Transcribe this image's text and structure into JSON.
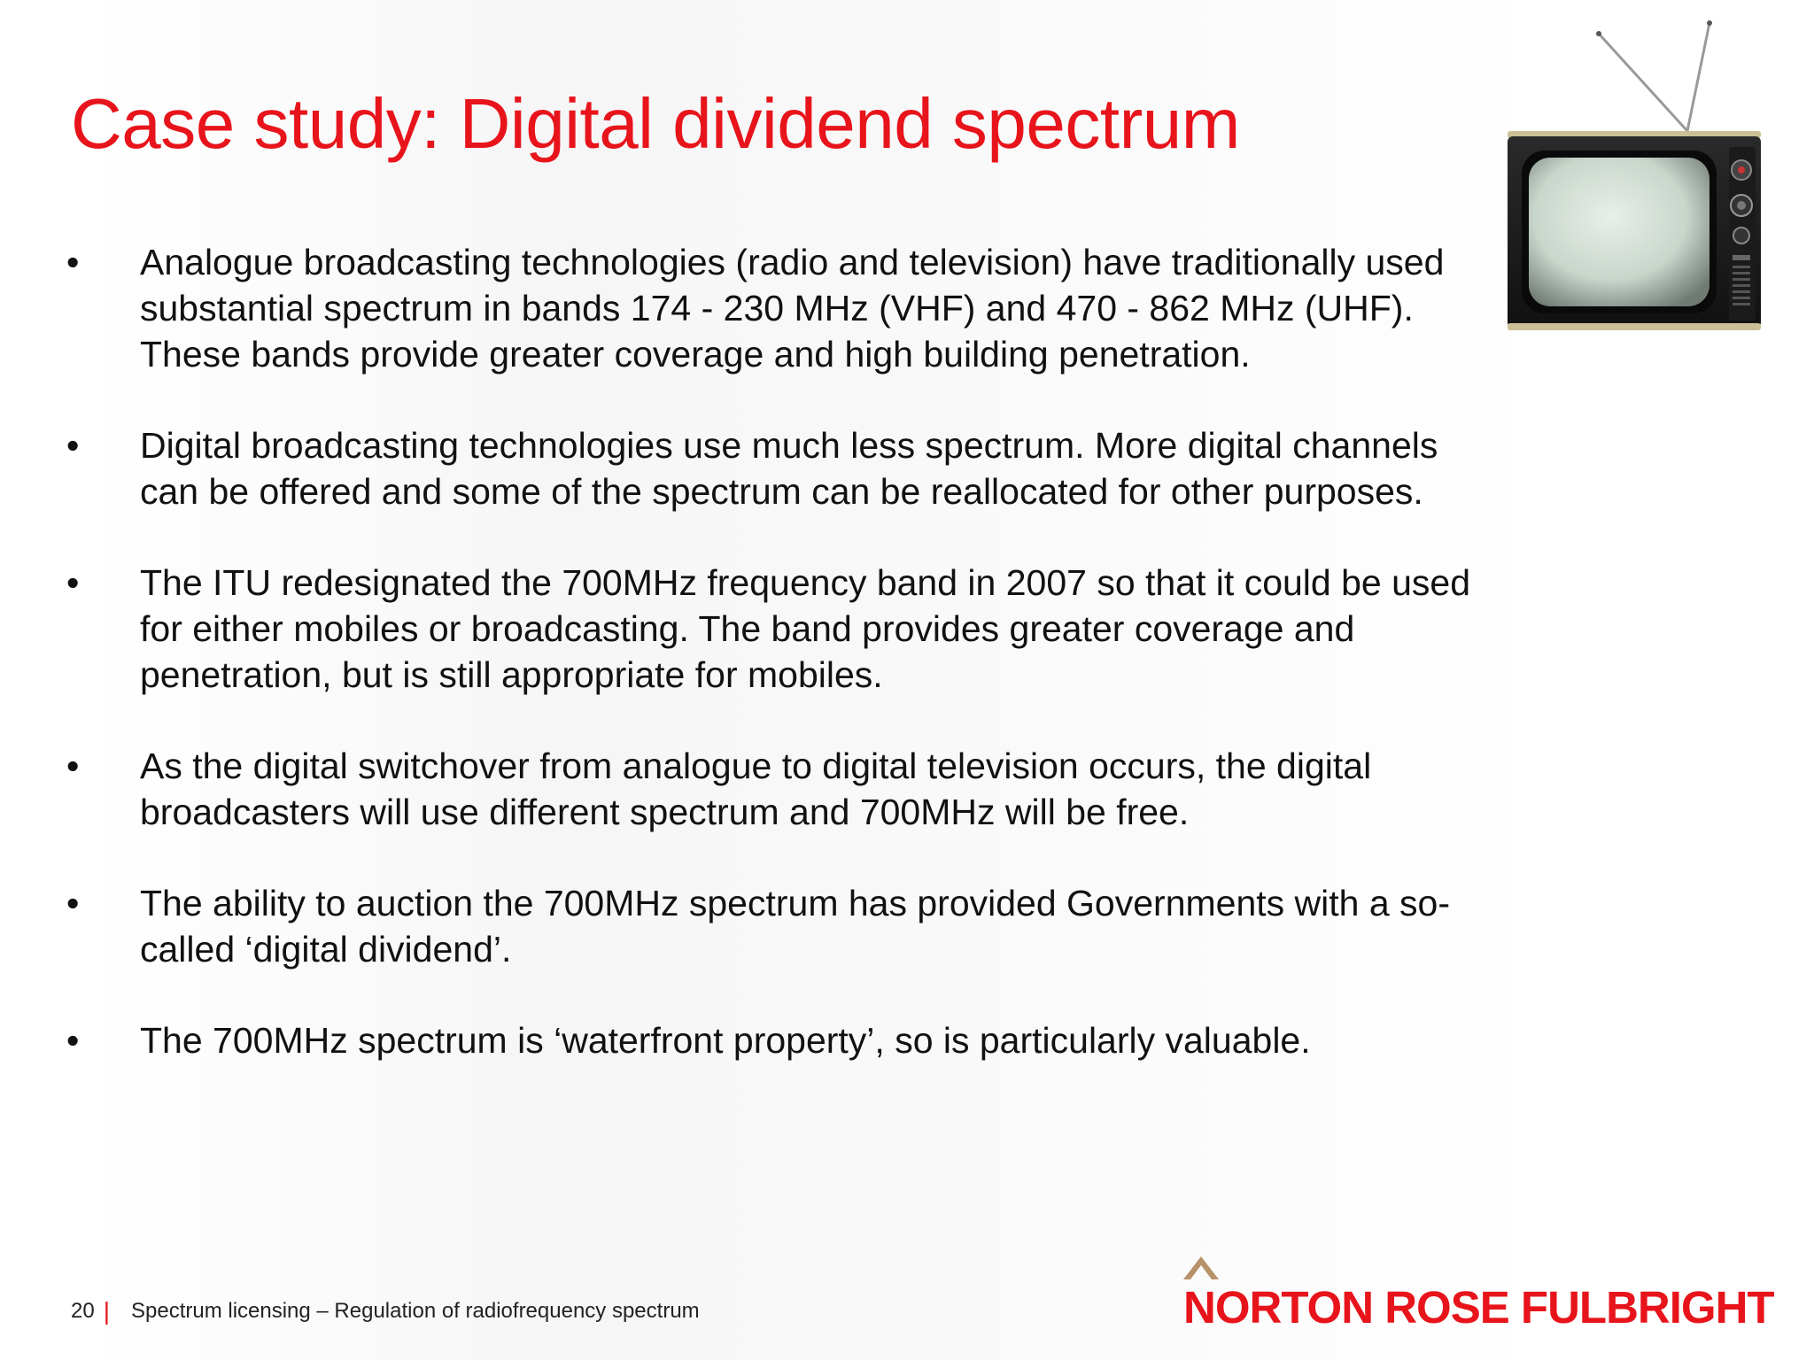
{
  "slide": {
    "title": "Case study: Digital dividend spectrum",
    "bullet_symbol": "•",
    "bullets": [
      "Analogue broadcasting technologies (radio and television) have traditionally used substantial spectrum in bands 174 - 230 MHz (VHF) and 470 - 862 MHz (UHF).   These bands provide greater coverage and high building penetration.",
      "Digital broadcasting technologies use much less spectrum.  More digital channels can be offered and some of the spectrum can be reallocated for other purposes.",
      "The ITU redesignated the 700MHz frequency band in 2007 so that it could be used for either mobiles or broadcasting.  The band provides greater coverage and penetration, but is still appropriate for mobiles.",
      "As the digital switchover from analogue to digital television occurs, the digital broadcasters will use different spectrum and 700MHz will be free.",
      "The ability to auction the 700MHz spectrum has provided Governments with a so-called ‘digital dividend’.",
      "The 700MHz spectrum is ‘waterfront property’, so is particularly valuable."
    ]
  },
  "footer": {
    "page_number": "20",
    "separator": "|",
    "text": "Spectrum licensing – Regulation of radiofrequency spectrum"
  },
  "logo": {
    "text": "NORTON ROSE FULBRIGHT",
    "color": "#e8141b"
  },
  "image": {
    "icon": "vintage-tv-icon"
  },
  "colors": {
    "accent": "#e8141b",
    "body_text": "#111111"
  }
}
